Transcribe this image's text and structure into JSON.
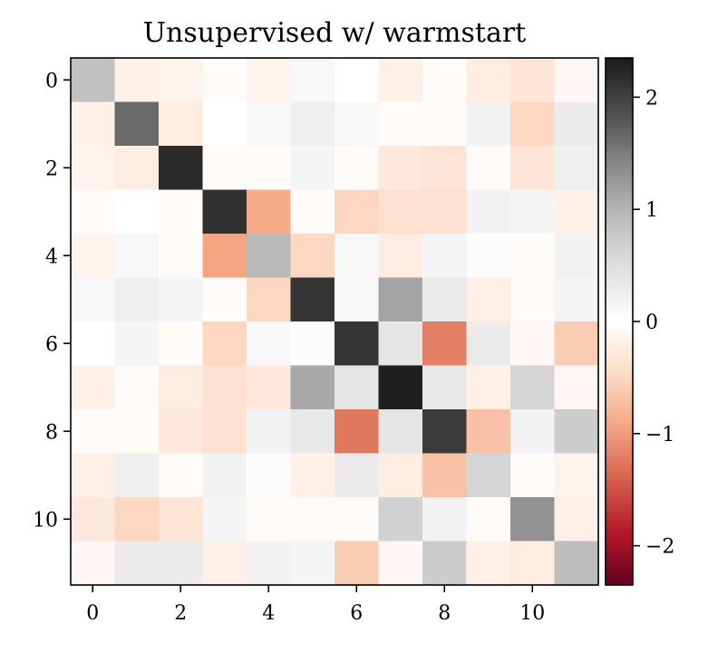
{
  "chart_data": {
    "type": "heatmap",
    "title": "Unsupervised w/ warmstart",
    "xlabel": "",
    "ylabel": "",
    "x_ticks": [
      0,
      2,
      4,
      6,
      8,
      10
    ],
    "y_ticks": [
      0,
      2,
      4,
      6,
      8,
      10
    ],
    "x_tick_labels": [
      "0",
      "2",
      "4",
      "6",
      "8",
      "10"
    ],
    "y_tick_labels": [
      "0",
      "2",
      "4",
      "6",
      "8",
      "10"
    ],
    "colorbar": {
      "colormap": "RdGy",
      "vmin": -2.35,
      "vmax": 2.35,
      "ticks": [
        2,
        1,
        0,
        -1,
        -2
      ],
      "tick_labels": [
        "2",
        "1",
        "0",
        "−1",
        "−2"
      ]
    },
    "values": [
      [
        0.85,
        -0.2,
        -0.15,
        -0.05,
        -0.15,
        0.1,
        0.0,
        -0.2,
        -0.05,
        -0.25,
        -0.35,
        -0.1
      ],
      [
        -0.2,
        1.65,
        -0.25,
        0.0,
        0.1,
        0.25,
        0.1,
        -0.05,
        -0.05,
        0.2,
        -0.5,
        0.3
      ],
      [
        -0.15,
        -0.25,
        2.2,
        -0.05,
        -0.05,
        0.15,
        -0.05,
        -0.3,
        -0.35,
        -0.05,
        -0.35,
        0.25
      ],
      [
        -0.05,
        0.0,
        -0.05,
        2.15,
        -0.9,
        -0.05,
        -0.5,
        -0.4,
        -0.4,
        0.2,
        0.15,
        -0.2
      ],
      [
        -0.15,
        0.1,
        -0.05,
        -0.95,
        0.95,
        -0.5,
        0.1,
        -0.25,
        0.15,
        0.05,
        -0.05,
        0.2
      ],
      [
        0.1,
        0.25,
        0.15,
        -0.05,
        -0.5,
        2.1,
        0.1,
        1.15,
        0.3,
        -0.2,
        -0.05,
        0.15
      ],
      [
        0.0,
        0.15,
        -0.05,
        -0.5,
        0.1,
        0.05,
        2.1,
        0.4,
        -1.2,
        0.3,
        -0.1,
        -0.6
      ],
      [
        -0.2,
        -0.05,
        -0.25,
        -0.4,
        -0.3,
        1.1,
        0.4,
        2.3,
        0.35,
        -0.2,
        0.6,
        -0.1
      ],
      [
        -0.05,
        -0.05,
        -0.3,
        -0.4,
        0.2,
        0.35,
        -1.25,
        0.4,
        2.05,
        -0.7,
        0.2,
        0.7
      ],
      [
        -0.2,
        0.25,
        -0.05,
        0.2,
        0.05,
        -0.2,
        0.3,
        -0.25,
        -0.7,
        0.6,
        -0.05,
        -0.15
      ],
      [
        -0.3,
        -0.5,
        -0.35,
        0.15,
        -0.05,
        -0.05,
        -0.05,
        0.65,
        0.2,
        -0.05,
        1.3,
        -0.2
      ],
      [
        -0.1,
        0.3,
        0.3,
        -0.2,
        0.2,
        0.15,
        -0.6,
        -0.1,
        0.7,
        -0.2,
        -0.25,
        0.9
      ]
    ]
  }
}
